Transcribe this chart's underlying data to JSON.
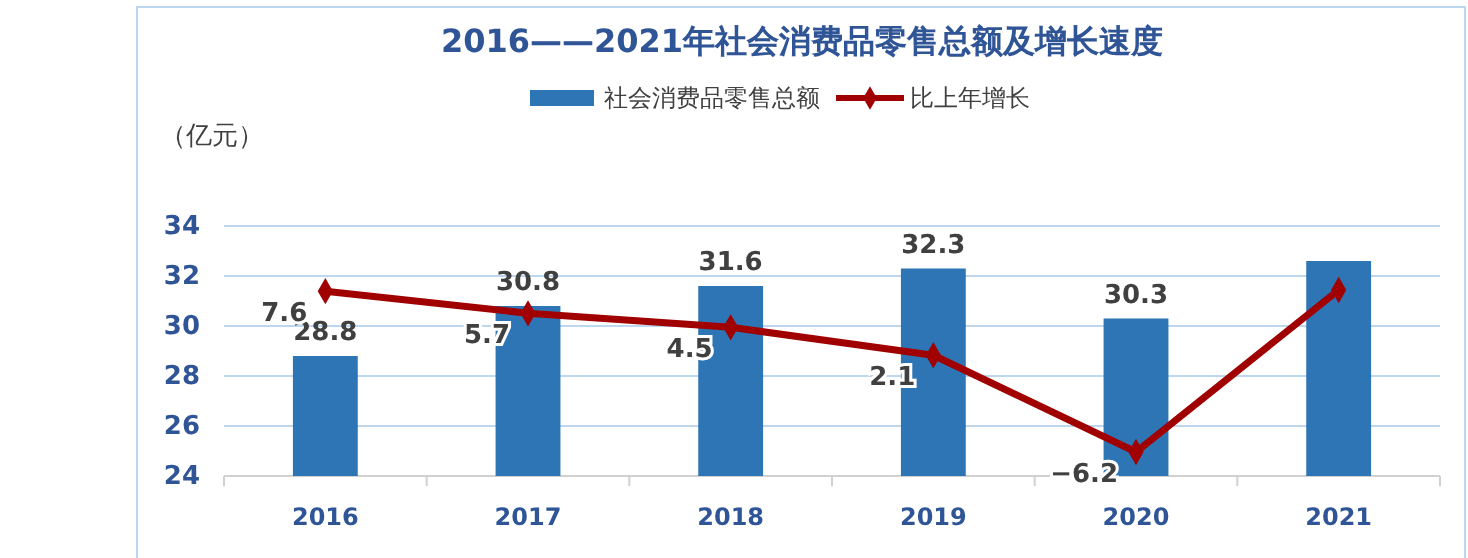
{
  "chart_data": {
    "type": "bar",
    "title": "2016——2021年社会消费品零售总额及增长速度",
    "ylabel": "（亿元）",
    "categories": [
      "2016",
      "2017",
      "2018",
      "2019",
      "2020",
      "2021"
    ],
    "series": [
      {
        "name": "社会消费品零售总额",
        "color": "#2e75b6",
        "values": [
          28.8,
          30.8,
          31.6,
          32.3,
          30.3,
          32.6
        ],
        "value_labels": [
          "28.8",
          "30.8",
          "31.6",
          "32.3",
          "30.3",
          null
        ]
      },
      {
        "name": "比上年增长",
        "type": "line",
        "axis": "y2",
        "color": "#a00000",
        "values": [
          7.6,
          5.7,
          4.5,
          2.1,
          -6.2,
          7.7
        ],
        "value_labels": [
          "7.6",
          "5.7",
          "4.5",
          "2.1",
          "−6.2",
          null
        ]
      }
    ],
    "ylim": [
      24,
      34
    ],
    "yticks": [
      24,
      26,
      28,
      30,
      32,
      34
    ],
    "grid": "y",
    "legend": "top",
    "marker": "diamond",
    "line_style": "solid",
    "tick_labels": "xy"
  }
}
